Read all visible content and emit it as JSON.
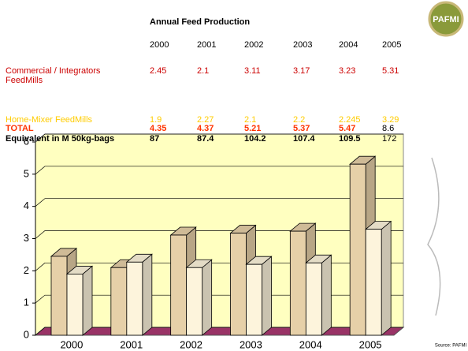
{
  "table": {
    "title": "Annual Feed Production",
    "years": [
      2000,
      2001,
      2002,
      2003,
      2004,
      2005
    ],
    "rows": [
      {
        "label": "Commercial / Integrators FeedMills",
        "values": [
          2.45,
          2.1,
          3.11,
          3.17,
          3.23,
          5.31
        ]
      },
      {
        "label": "Home-Mixer FeedMills",
        "values": [
          1.9,
          2.27,
          2.1,
          2.2,
          2.245,
          3.29
        ]
      },
      {
        "label": "TOTAL",
        "values": [
          4.35,
          4.37,
          5.21,
          5.37,
          5.47,
          8.6
        ]
      },
      {
        "label": "Equivalent in M 50kg-bags",
        "values": [
          87,
          87.4,
          104.2,
          107.4,
          109.5,
          172
        ]
      }
    ]
  },
  "chart_data": {
    "type": "bar3d",
    "categories": [
      "2000",
      "2001",
      "2002",
      "2003",
      "2004",
      "2005"
    ],
    "series": [
      {
        "color": "#e6d0a8",
        "values": [
          2.45,
          2.1,
          3.11,
          3.17,
          3.23,
          5.31
        ]
      },
      {
        "color": "#fdf4dc",
        "values": [
          1.9,
          2.27,
          2.1,
          2.2,
          2.245,
          3.29
        ]
      }
    ],
    "ylim": [
      0,
      6
    ],
    "yticks": [
      0,
      1,
      2,
      3,
      4,
      5,
      6
    ],
    "grid": true,
    "wall_color": "#ffffc0",
    "floor_color": "#993366"
  },
  "logo": {
    "text": "PAFMI"
  },
  "source": "Source: PAFMI"
}
